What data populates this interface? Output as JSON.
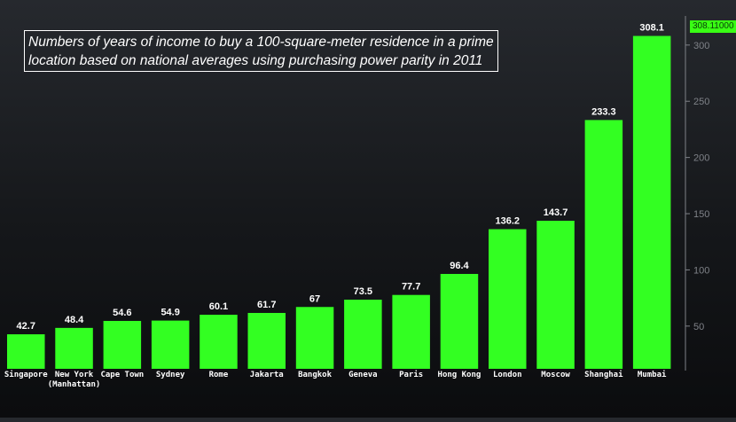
{
  "chart_data": {
    "type": "bar",
    "title_lines": [
      "Numbers of years of income to buy a 100-square-meter residence in a prime",
      "location based on national averages using purchasing power parity in 2011"
    ],
    "categories": [
      [
        "Singapore"
      ],
      [
        "New York",
        "(Manhattan)"
      ],
      [
        "Cape Town"
      ],
      [
        "Sydney"
      ],
      [
        "Rome"
      ],
      [
        "Jakarta"
      ],
      [
        "Bangkok"
      ],
      [
        "Geneva"
      ],
      [
        "Paris"
      ],
      [
        "Hong Kong"
      ],
      [
        "London"
      ],
      [
        "Moscow"
      ],
      [
        "Shanghai"
      ],
      [
        "Mumbai"
      ]
    ],
    "values": [
      42.7,
      48.4,
      54.6,
      54.9,
      60.1,
      61.7,
      67,
      73.5,
      77.7,
      96.4,
      136.2,
      143.7,
      233.3,
      308.1
    ],
    "value_labels": [
      "42.7",
      "48.4",
      "54.6",
      "54.9",
      "60.1",
      "61.7",
      "67",
      "73.5",
      "77.7",
      "96.4",
      "136.2",
      "143.7",
      "233.3",
      "308.1"
    ],
    "yticks": [
      50,
      100,
      150,
      200,
      250,
      300
    ],
    "ylim": [
      12,
      318
    ],
    "y_axis_side": "right",
    "last_value_label": "308.11000",
    "bar_color": "#33ff22",
    "label_color": "#ffffff",
    "tick_color": "#7f8288",
    "grid": false
  }
}
